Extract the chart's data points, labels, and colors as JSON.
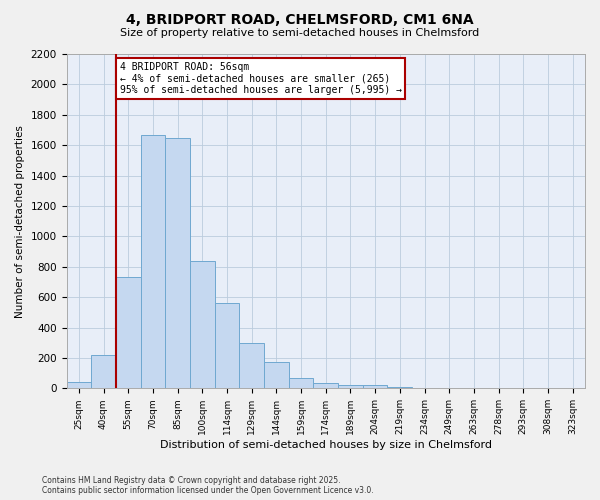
{
  "title": "4, BRIDPORT ROAD, CHELMSFORD, CM1 6NA",
  "subtitle": "Size of property relative to semi-detached houses in Chelmsford",
  "xlabel": "Distribution of semi-detached houses by size in Chelmsford",
  "ylabel": "Number of semi-detached properties",
  "categories": [
    "25sqm",
    "40sqm",
    "55sqm",
    "70sqm",
    "85sqm",
    "100sqm",
    "114sqm",
    "129sqm",
    "144sqm",
    "159sqm",
    "174sqm",
    "189sqm",
    "204sqm",
    "219sqm",
    "234sqm",
    "249sqm",
    "263sqm",
    "278sqm",
    "293sqm",
    "308sqm",
    "323sqm"
  ],
  "values": [
    40,
    220,
    730,
    1670,
    1650,
    840,
    560,
    300,
    175,
    65,
    35,
    20,
    20,
    10,
    5,
    0,
    0,
    0,
    0,
    0,
    0
  ],
  "bar_color": "#c5d8f0",
  "bar_edge_color": "#6fa8d0",
  "highlight_color": "#aa0000",
  "annotation_title": "4 BRIDPORT ROAD: 56sqm",
  "annotation_line1": "← 4% of semi-detached houses are smaller (265)",
  "annotation_line2": "95% of semi-detached houses are larger (5,995) →",
  "annotation_box_color": "#ffffff",
  "annotation_box_edge": "#aa0000",
  "vline_index": 2,
  "ylim": [
    0,
    2200
  ],
  "yticks": [
    0,
    200,
    400,
    600,
    800,
    1000,
    1200,
    1400,
    1600,
    1800,
    2000,
    2200
  ],
  "footer_line1": "Contains HM Land Registry data © Crown copyright and database right 2025.",
  "footer_line2": "Contains public sector information licensed under the Open Government Licence v3.0.",
  "background_color": "#f0f0f0",
  "plot_background": "#e8eef8"
}
